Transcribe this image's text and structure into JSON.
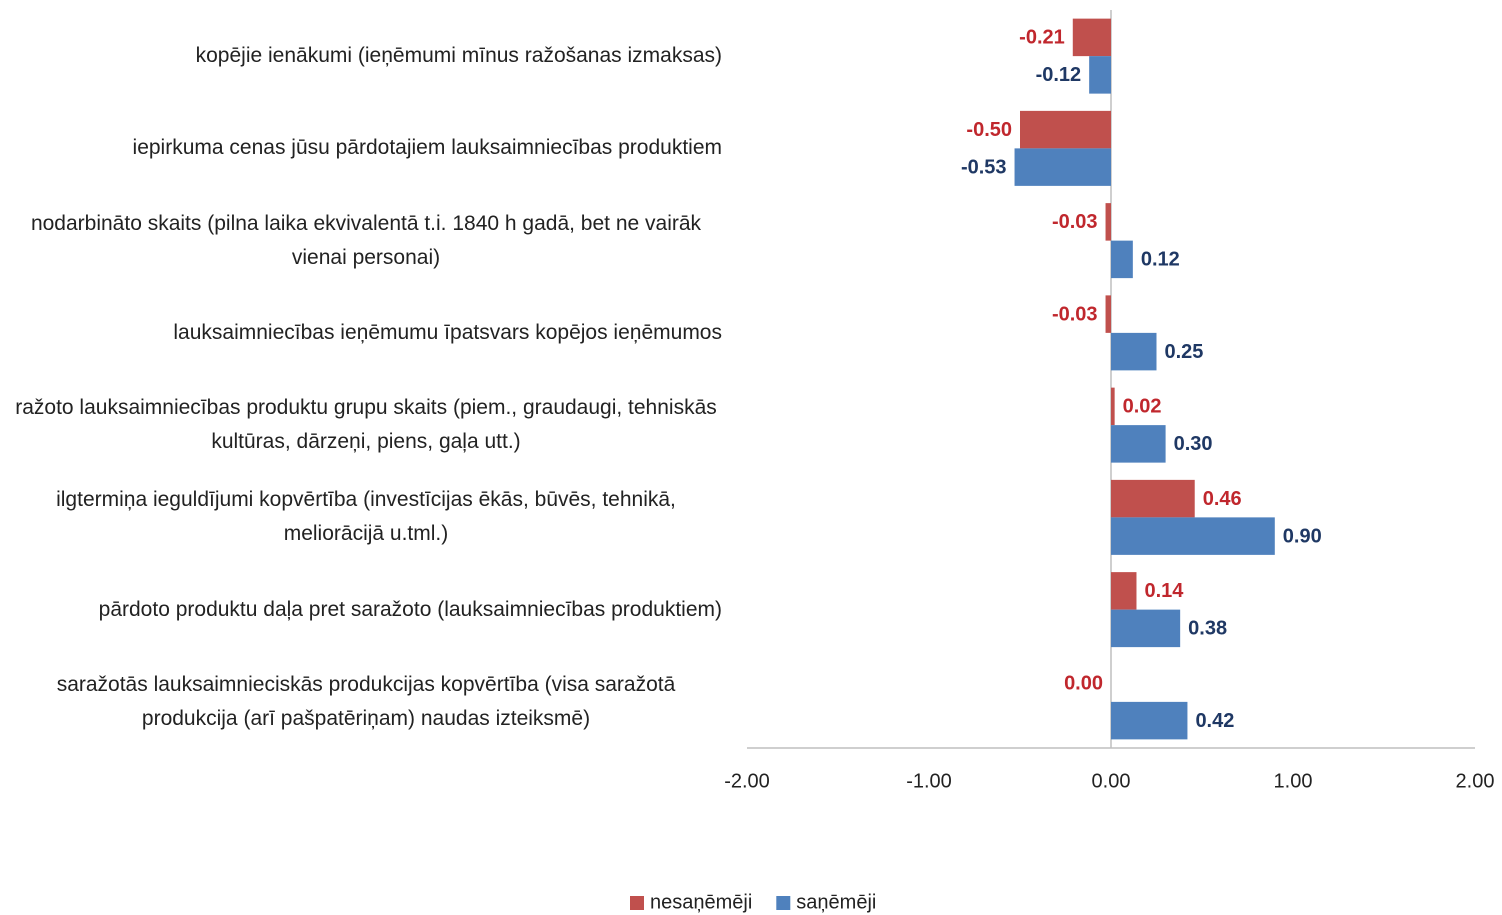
{
  "chart_data": {
    "type": "bar",
    "orientation": "horizontal",
    "categories": [
      "kopējie ienākumi (ieņēmumi mīnus ražošanas izmaksas)",
      "iepirkuma cenas jūsu pārdotajiem lauksaimniecības produktiem",
      "nodarbināto skaits (pilna laika ekvivalentā t.i. 1840 h gadā, bet ne vairāk vienai personai)",
      "lauksaimniecības ieņēmumu īpatsvars kopējos ieņēmumos",
      "ražoto lauksaimniecības produktu grupu skaits (piem., graudaugi, tehniskās kultūras, dārzeņi, piens, gaļa utt.)",
      "ilgtermiņa ieguldījumi kopvērtība (investīcijas ēkās, būvēs, tehnikā, meliorācijā u.tml.)",
      "pārdoto produktu daļa pret saražoto (lauksaimniecības produktiem)",
      "saražotās lauksaimnieciskās produkcijas kopvērtība (visa saražotā produkcija (arī pašpatēriņam) naudas izteiksmē)"
    ],
    "series": [
      {
        "name": "nesaņēmēji",
        "color": "#c0504d",
        "label_color": "#c0272d",
        "values": [
          -0.21,
          -0.5,
          -0.03,
          -0.03,
          0.02,
          0.46,
          0.14,
          0
        ],
        "value_labels": [
          "-0.21",
          "-0.50",
          "-0.03",
          "-0.03",
          "0.02",
          "0.46",
          "0.14",
          "0.00"
        ]
      },
      {
        "name": "saņēmēji",
        "color": "#4f81bd",
        "label_color": "#1f3864",
        "values": [
          -0.12,
          -0.53,
          0.12,
          0.25,
          0.3,
          0.9,
          0.38,
          0.42
        ],
        "value_labels": [
          "-0.12",
          "-0.53",
          "0.12",
          "0.25",
          "0.30",
          "0.90",
          "0.38",
          "0.42"
        ]
      }
    ],
    "xlim": [
      -2,
      2
    ],
    "xticks": [
      {
        "value": -2,
        "label": "-2.00"
      },
      {
        "value": -1,
        "label": "-1.00"
      },
      {
        "value": 0,
        "label": "0.00"
      },
      {
        "value": 1,
        "label": "1.00"
      },
      {
        "value": 2,
        "label": "2.00"
      }
    ],
    "legend": "bottom"
  }
}
